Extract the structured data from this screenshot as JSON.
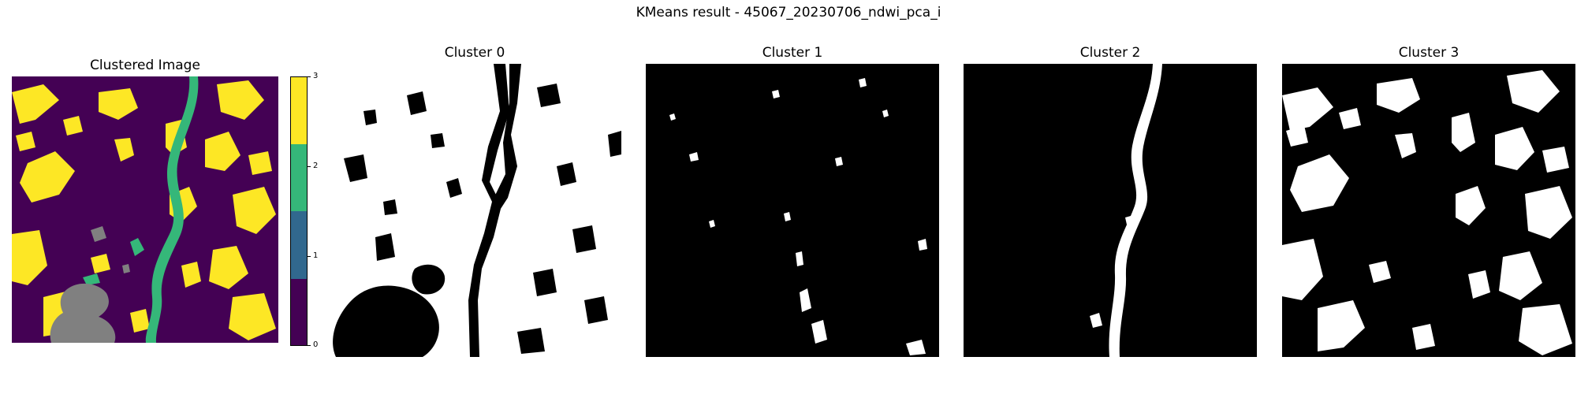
{
  "suptitle": "KMeans result - 45067_20230706_ndwi_pca_i",
  "panels": [
    {
      "title": "Clustered Image"
    },
    {
      "title": "Cluster 0"
    },
    {
      "title": "Cluster 1"
    },
    {
      "title": "Cluster 2"
    },
    {
      "title": "Cluster 3"
    }
  ],
  "colorbar": {
    "ticks": [
      "0",
      "1",
      "2",
      "3"
    ],
    "colors": [
      "#440154",
      "#31688e",
      "#35b779",
      "#fde725"
    ]
  },
  "colors": {
    "cluster_0": "#440154",
    "cluster_1": "#31688e",
    "cluster_2": "#35b779",
    "cluster_3": "#fde725",
    "nodata": "#808080"
  }
}
